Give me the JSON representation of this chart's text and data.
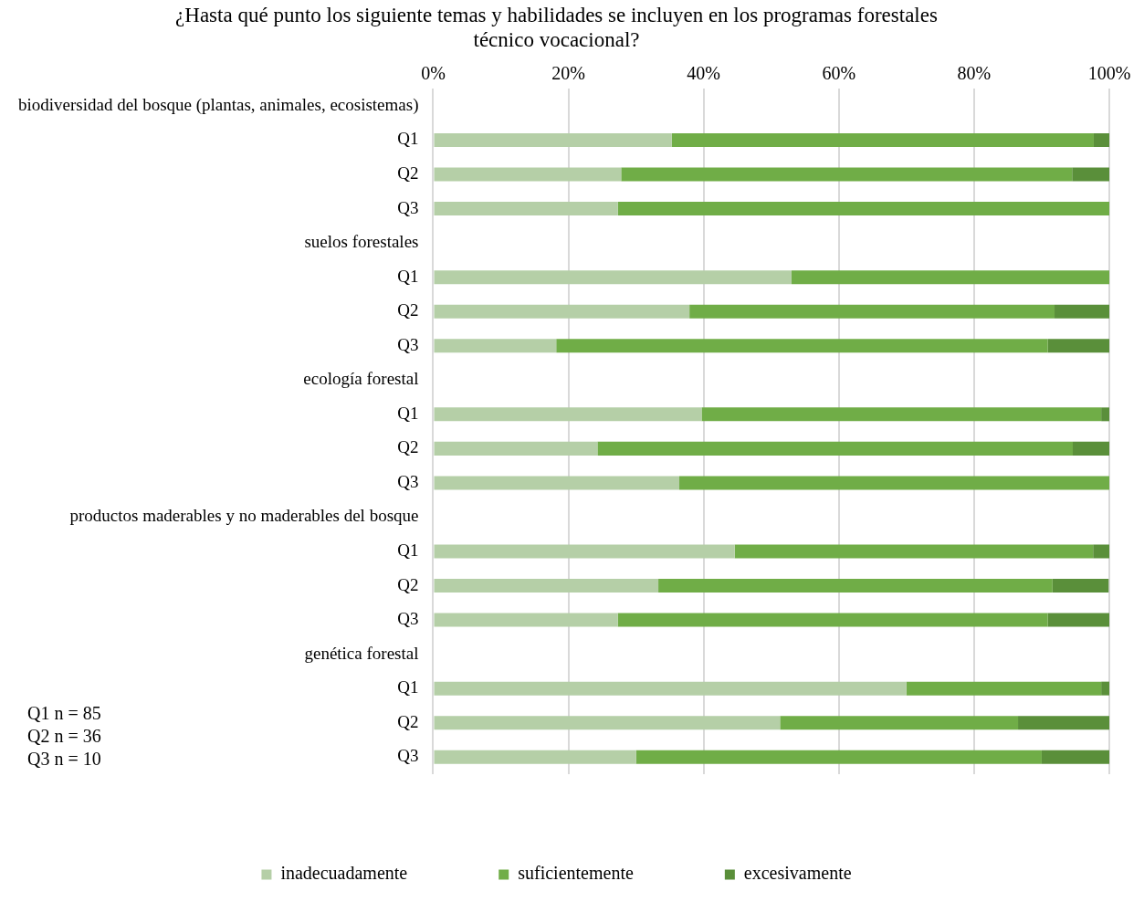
{
  "chart_data": {
    "type": "bar",
    "orientation": "horizontal",
    "stacked": true,
    "title": "¿Hasta qué punto los siguiente temas y habilidades se incluyen en los programas forestales técnico vocacional?",
    "categories": [
      "biodiversidad del bosque (plantas, animales, ecosistemas)",
      "Q1",
      "Q2",
      "Q3",
      "suelos forestales",
      "Q1",
      "Q2",
      "Q3",
      "ecología forestal",
      "Q1",
      "Q2",
      "Q3",
      "productos maderables y no maderables del bosque",
      "Q1",
      "Q2",
      "Q3",
      "genética forestal",
      "Q1",
      "Q2",
      "Q3"
    ],
    "series": [
      {
        "name": "inadecuadamente",
        "color": "#b5cfa7",
        "values": [
          null,
          35.3,
          27.8,
          27.3,
          null,
          53.0,
          37.9,
          18.2,
          null,
          39.7,
          24.3,
          36.4,
          null,
          44.6,
          33.3,
          27.3,
          null,
          70.0,
          51.3,
          30.0
        ]
      },
      {
        "name": "suficientemente",
        "color": "#70ad47",
        "values": [
          null,
          62.4,
          66.7,
          72.7,
          null,
          47.0,
          54.0,
          72.7,
          null,
          59.1,
          70.3,
          63.6,
          null,
          53.0,
          58.3,
          63.6,
          null,
          28.8,
          35.2,
          60.0
        ]
      },
      {
        "name": "excesivamente",
        "color": "#5a8f3a",
        "values": [
          null,
          2.4,
          5.6,
          0,
          null,
          0,
          8.1,
          9.1,
          null,
          1.2,
          5.4,
          0,
          null,
          2.4,
          8.3,
          9.1,
          null,
          1.2,
          13.5,
          10.0
        ]
      }
    ],
    "xlim": [
      0,
      100
    ],
    "xticks": [
      {
        "value": 0,
        "label": "0%"
      },
      {
        "value": 20,
        "label": "20%"
      },
      {
        "value": 40,
        "label": "40%"
      },
      {
        "value": 60,
        "label": "60%"
      },
      {
        "value": 80,
        "label": "80%"
      },
      {
        "value": 100,
        "label": "100%"
      }
    ],
    "grid": "x",
    "legend": "bottom",
    "annotations": [
      "Q1 n = 85",
      "Q2 n = 36",
      "Q3 n = 10"
    ]
  }
}
